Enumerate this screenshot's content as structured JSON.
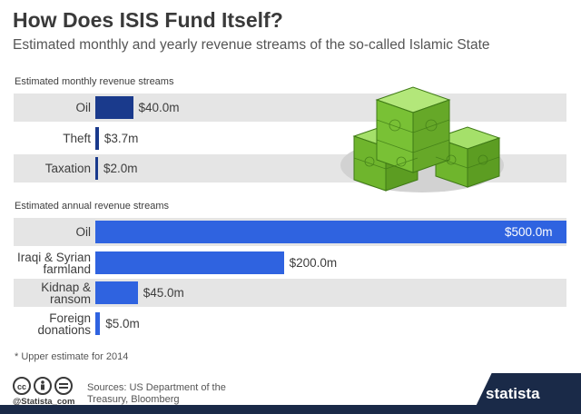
{
  "title": "How Does ISIS Fund Itself?",
  "subtitle": "Estimated monthly and yearly revenue streams of the so-called Islamic State",
  "footnote": "* Upper estimate for 2014",
  "sources": "Sources: US Department of the Treasury, Bloomberg",
  "credit": "@Statista_com",
  "brand": "statista",
  "colors": {
    "monthly_bar": "#1a3a8c",
    "annual_bar": "#2f63e0",
    "band": "#e5e5e5",
    "brand_dark": "#1a2a48",
    "money_green": "#7ec93b"
  },
  "icons": [
    "creative-commons-icon",
    "attribution-icon",
    "equals-icon",
    "money-stack-icon",
    "statista-logo-icon"
  ],
  "chart_data": [
    {
      "type": "bar",
      "orientation": "horizontal",
      "section_label": "Estimated monthly revenue streams",
      "categories": [
        "Oil",
        "Theft",
        "Taxation"
      ],
      "values": [
        40.0,
        3.7,
        2.0
      ],
      "value_labels": [
        "$40.0m",
        "$3.7m",
        "$2.0m"
      ],
      "unit": "million USD",
      "xlim": [
        0,
        500
      ]
    },
    {
      "type": "bar",
      "orientation": "horizontal",
      "section_label": "Estimated annual revenue streams",
      "categories": [
        "Oil",
        "Iraqi & Syrian farmland",
        "Kidnap & ransom",
        "Foreign donations"
      ],
      "category_lines": [
        [
          "Oil"
        ],
        [
          "Iraqi & Syrian",
          "farmland"
        ],
        [
          "Kidnap &",
          "ransom"
        ],
        [
          "Foreign",
          "donations"
        ]
      ],
      "values": [
        500.0,
        200.0,
        45.0,
        5.0
      ],
      "value_labels": [
        "$500.0m",
        "$200.0m",
        "$45.0m",
        "$5.0m"
      ],
      "unit": "million USD",
      "xlim": [
        0,
        500
      ]
    }
  ]
}
